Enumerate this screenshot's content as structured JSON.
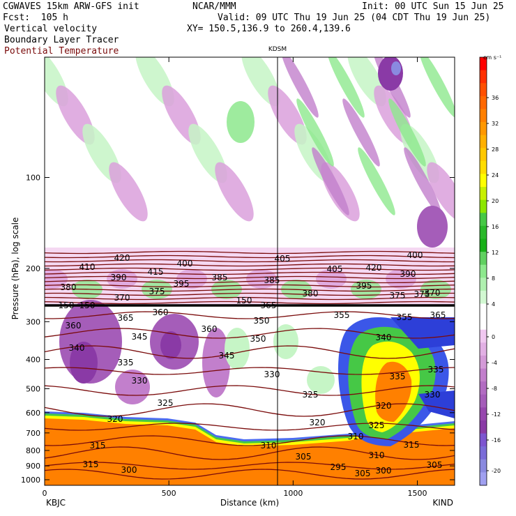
{
  "header": {
    "model": "CGWAVES 15km ARW-GFS init",
    "org": "NCAR/MMM",
    "init": "Init: 00 UTC Sun 15 Jun 25",
    "fcst": "Fcst:  105 h",
    "valid": "Valid: 09 UTC Thu 19 Jun 25 (04 CDT Thu 19 Jun 25)",
    "xy": "XY= 150.5,136.9 to 260.4,139.6",
    "field1": "Vertical velocity",
    "field2": "Boundary Layer Tracer",
    "field3": "Potential Temperature"
  },
  "colors": {
    "theta": "#7a0b0b",
    "pos": [
      "#ffffff",
      "#c6f5c6",
      "#8de88d",
      "#46c846",
      "#18b018",
      "#ffff00",
      "#ffd400",
      "#ffa800",
      "#ff8000",
      "#ff5000",
      "#ff0000"
    ],
    "neg": [
      "#ffffff",
      "#f0c8f0",
      "#dba0dc",
      "#c27fcc",
      "#a55db9",
      "#8a3aa6",
      "#7d55d0",
      "#8a8ae0",
      "#a0a0f0"
    ]
  },
  "chart_data": {
    "type": "heatmap",
    "title": "",
    "xlabel": "Distance (km)",
    "ylabel": "Pressure (hPa), log scale",
    "y_scale": "log",
    "x_ticks": [
      "0",
      "500",
      "1000",
      "1500"
    ],
    "y_ticks": [
      "100",
      "200",
      "300",
      "400",
      "500",
      "600",
      "700",
      "800",
      "900",
      "1000"
    ],
    "x_range": [
      0,
      1650
    ],
    "y_range": [
      1000,
      40
    ],
    "left_station": "KBJC",
    "right_station": "KIND",
    "marker_station": "KDSM",
    "marker_x": 935,
    "colorbar": {
      "unit": "cm s⁻¹",
      "tick_labels": [
        "36",
        "32",
        "28",
        "24",
        "20",
        "16",
        "12",
        "8",
        "4",
        "0",
        "-4",
        "-8",
        "-12",
        "-16",
        "-20"
      ]
    },
    "series": [
      {
        "name": "Potential Temperature",
        "contour_labels": [
          "420",
          "405",
          "400",
          "410",
          "415",
          "400",
          "405",
          "420",
          "390",
          "385",
          "395",
          "390",
          "385",
          "395",
          "380",
          "375",
          "380",
          "375",
          "375",
          "370",
          "370",
          "150",
          "150",
          "150",
          "365",
          "360",
          "365",
          "355",
          "360",
          "350",
          "360",
          "355",
          "365",
          "345",
          "340",
          "350",
          "345",
          "340",
          "335",
          "335",
          "330",
          "330",
          "335",
          "325",
          "325",
          "330",
          "320",
          "320",
          "320",
          "325",
          "315",
          "310",
          "315",
          "310",
          "315",
          "305",
          "310",
          "300",
          "305",
          "295",
          "300",
          "305"
        ]
      }
    ]
  }
}
